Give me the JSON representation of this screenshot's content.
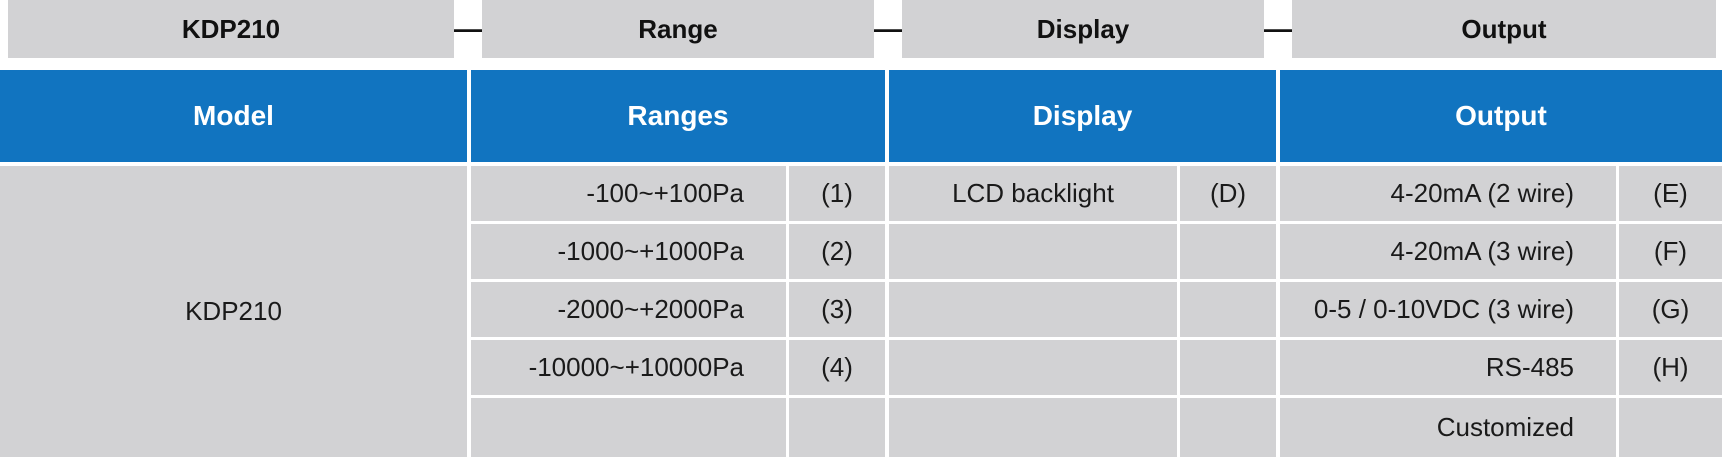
{
  "top_bar": {
    "model": "KDP210",
    "range": "Range",
    "display": "Display",
    "output": "Output",
    "separator": "—"
  },
  "header": {
    "model": "Model",
    "ranges": "Ranges",
    "display": "Display",
    "output": "Output"
  },
  "model_value": "KDP210",
  "ranges": [
    {
      "label": "-100~+100Pa",
      "code": "(1)"
    },
    {
      "label": "-1000~+1000Pa",
      "code": "(2)"
    },
    {
      "label": "-2000~+2000Pa",
      "code": "(3)"
    },
    {
      "label": "-10000~+10000Pa",
      "code": "(4)"
    },
    {
      "label": "",
      "code": ""
    }
  ],
  "displays": [
    {
      "label": "LCD backlight",
      "code": "(D)"
    },
    {
      "label": "",
      "code": ""
    },
    {
      "label": "",
      "code": ""
    },
    {
      "label": "",
      "code": ""
    },
    {
      "label": "",
      "code": ""
    }
  ],
  "outputs": [
    {
      "label": "4-20mA (2 wire)",
      "code": "(E)"
    },
    {
      "label": "4-20mA (3 wire)",
      "code": "(F)"
    },
    {
      "label": "0-5 / 0-10VDC (3 wire)",
      "code": "(G)"
    },
    {
      "label": "RS-485",
      "code": "(H)"
    },
    {
      "label": "Customized",
      "code": ""
    }
  ]
}
